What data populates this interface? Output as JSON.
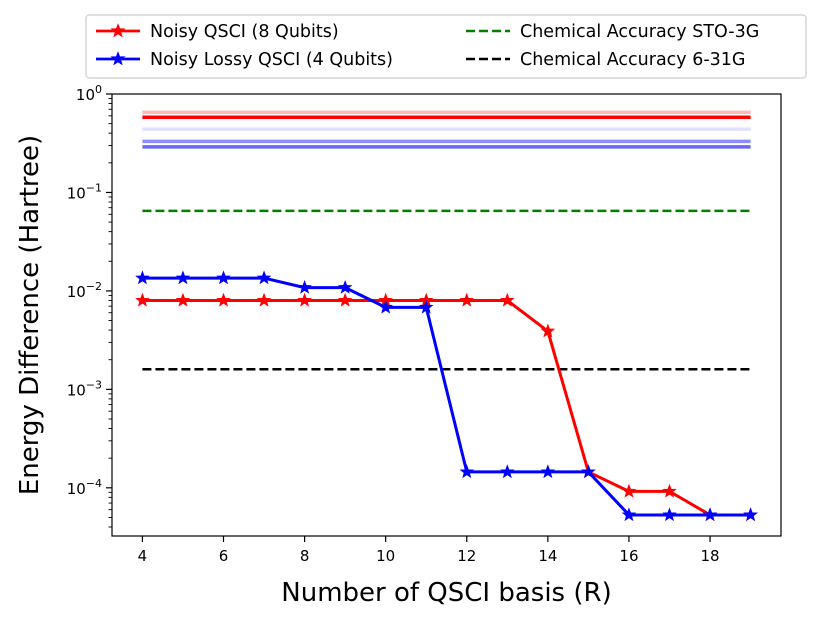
{
  "chart_data": {
    "type": "line",
    "xlabel": "Number of QSCI basis (R)",
    "ylabel": "Energy Difference (Hartree)",
    "yscale": "log",
    "xlim": [
      3.25,
      19.75
    ],
    "ylim": [
      3.24e-05,
      1.0
    ],
    "xticks": [
      4,
      6,
      8,
      10,
      12,
      14,
      16,
      18
    ],
    "xtick_labels": [
      "4",
      "6",
      "8",
      "10",
      "12",
      "14",
      "16",
      "18"
    ],
    "yticks": [
      0.0001,
      0.001,
      0.01,
      0.1,
      1
    ],
    "ytick_labels": [
      {
        "base": "10",
        "exp": "−4"
      },
      {
        "base": "10",
        "exp": "−3"
      },
      {
        "base": "10",
        "exp": "−2"
      },
      {
        "base": "10",
        "exp": "−1"
      },
      {
        "base": "10",
        "exp": "0"
      }
    ],
    "series": [
      {
        "name": "Noisy QSCI (8 Qubits)",
        "color": "#ff0000",
        "marker": "star",
        "x": [
          4,
          5,
          6,
          7,
          8,
          9,
          10,
          11,
          12,
          13,
          14,
          15,
          16,
          17,
          18,
          19
        ],
        "y": [
          0.008,
          0.008,
          0.008,
          0.008,
          0.008,
          0.008,
          0.008,
          0.008,
          0.008,
          0.008,
          0.0039,
          0.000145,
          9.2e-05,
          9.2e-05,
          5.3e-05,
          5.3e-05
        ]
      },
      {
        "name": "Noisy Lossy QSCI (4 Qubits)",
        "color": "#0000ff",
        "marker": "star",
        "x": [
          4,
          5,
          6,
          7,
          8,
          9,
          10,
          11,
          12,
          13,
          14,
          15,
          16,
          17,
          18,
          19
        ],
        "y": [
          0.0135,
          0.0135,
          0.0135,
          0.0135,
          0.0108,
          0.0108,
          0.0068,
          0.0068,
          0.000145,
          0.000145,
          0.000145,
          0.000145,
          5.3e-05,
          5.3e-05,
          5.3e-05,
          5.3e-05
        ]
      }
    ],
    "reference_lines": [
      {
        "name": "Chemical Accuracy STO-3G",
        "color": "#008000",
        "style": "dashed",
        "y": 0.065,
        "x": [
          4,
          19
        ]
      },
      {
        "name": "Chemical Accuracy 6-31G",
        "color": "#000000",
        "style": "dashed",
        "y": 0.0016,
        "x": [
          4,
          19
        ]
      }
    ],
    "band_lines": [
      {
        "color": "#ff0000",
        "alpha": 0.28,
        "y": 0.65,
        "x": [
          4,
          19
        ]
      },
      {
        "color": "#ff0000",
        "alpha": 1.0,
        "y": 0.58,
        "x": [
          4,
          19
        ]
      },
      {
        "color": "#0000ff",
        "alpha": 0.12,
        "y": 0.44,
        "x": [
          4,
          19
        ]
      },
      {
        "color": "#0000ff",
        "alpha": 0.45,
        "y": 0.33,
        "x": [
          4,
          19
        ]
      },
      {
        "color": "#0000ff",
        "alpha": 0.6,
        "y": 0.29,
        "x": [
          4,
          19
        ]
      }
    ],
    "legend": {
      "position": "above-plot",
      "columns": 2,
      "entries": [
        {
          "label": "Noisy QSCI (8 Qubits)",
          "color": "#ff0000",
          "style": "solid-star"
        },
        {
          "label": "Noisy Lossy QSCI (4 Qubits)",
          "color": "#0000ff",
          "style": "solid-star"
        },
        {
          "label": "Chemical Accuracy STO-3G",
          "color": "#008000",
          "style": "dashed"
        },
        {
          "label": "Chemical Accuracy 6-31G",
          "color": "#000000",
          "style": "dashed"
        }
      ]
    }
  }
}
